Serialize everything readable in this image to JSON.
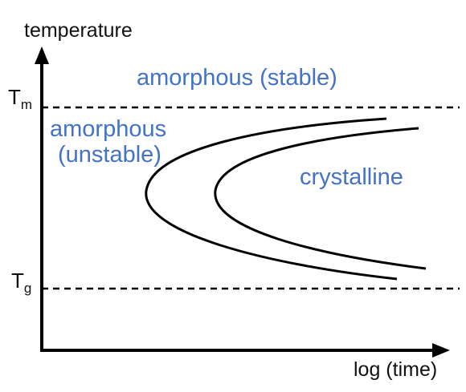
{
  "y_axis_label": "temperature",
  "x_axis_label": "log (time)",
  "levels": {
    "melting": {
      "symbol": "T",
      "subscript": "m"
    },
    "glass": {
      "symbol": "T",
      "subscript": "g"
    }
  },
  "regions": {
    "stable": "amorphous (stable)",
    "unstable_line1": "amorphous",
    "unstable_line2": "(unstable)",
    "crystalline": "crystalline"
  },
  "colors": {
    "region_text": "#4472c4",
    "axis": "#000000",
    "text": "#111111"
  }
}
